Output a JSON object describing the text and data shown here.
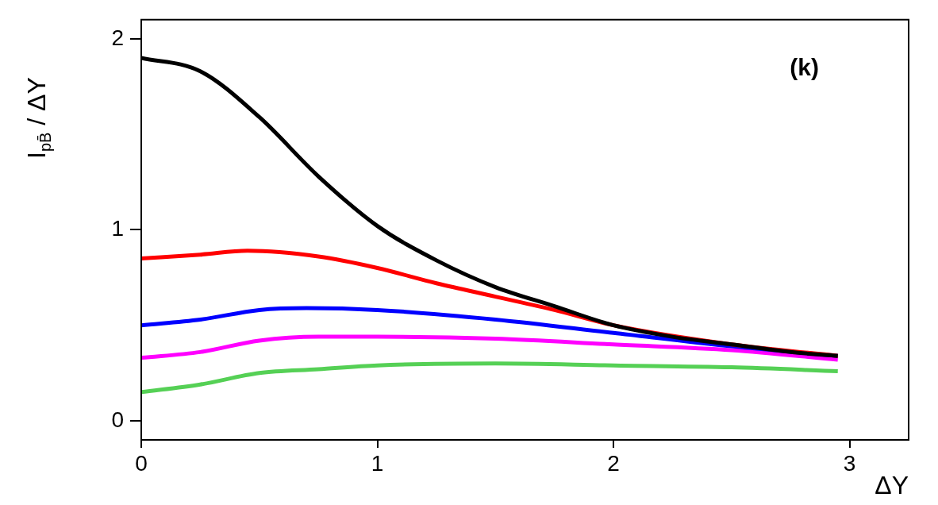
{
  "chart_data": {
    "type": "line",
    "xlabel": "ΔY",
    "ylabel": "I$_{pB̄}$ / ΔY",
    "annotations": [
      "(k)"
    ],
    "xlim": [
      0,
      3.25
    ],
    "ylim": [
      -0.1,
      2.1
    ],
    "xticks": [
      0,
      1,
      2,
      3
    ],
    "yticks": [
      0,
      1,
      2
    ],
    "grid": false,
    "legend": false,
    "marker": "none",
    "line_style": "solid",
    "series": [
      {
        "color": "#000000",
        "x": [
          0,
          0.25,
          0.5,
          0.75,
          1.0,
          1.25,
          1.5,
          1.75,
          2.0,
          2.25,
          2.5,
          2.75,
          2.95
        ],
        "values": [
          1.9,
          1.83,
          1.59,
          1.28,
          1.02,
          0.84,
          0.7,
          0.6,
          0.5,
          0.44,
          0.4,
          0.36,
          0.34
        ]
      },
      {
        "color": "#ff0000",
        "x": [
          0,
          0.25,
          0.45,
          0.75,
          1.0,
          1.25,
          1.5,
          1.75,
          2.0,
          2.5,
          2.95
        ],
        "values": [
          0.85,
          0.87,
          0.89,
          0.86,
          0.8,
          0.72,
          0.65,
          0.58,
          0.5,
          0.4,
          0.34
        ]
      },
      {
        "color": "#0000ff",
        "x": [
          0,
          0.25,
          0.5,
          0.7,
          1.0,
          1.5,
          2.0,
          2.5,
          2.95
        ],
        "values": [
          0.5,
          0.53,
          0.58,
          0.59,
          0.58,
          0.53,
          0.46,
          0.39,
          0.34
        ]
      },
      {
        "color": "#ff00ff",
        "x": [
          0,
          0.25,
          0.5,
          0.75,
          1.0,
          1.5,
          2.0,
          2.5,
          2.95
        ],
        "values": [
          0.33,
          0.36,
          0.42,
          0.44,
          0.44,
          0.43,
          0.4,
          0.37,
          0.32
        ]
      },
      {
        "color": "#55d055",
        "x": [
          0,
          0.25,
          0.5,
          0.75,
          1.0,
          1.5,
          2.0,
          2.5,
          2.95
        ],
        "values": [
          0.15,
          0.19,
          0.25,
          0.27,
          0.29,
          0.3,
          0.29,
          0.28,
          0.26
        ]
      }
    ]
  }
}
